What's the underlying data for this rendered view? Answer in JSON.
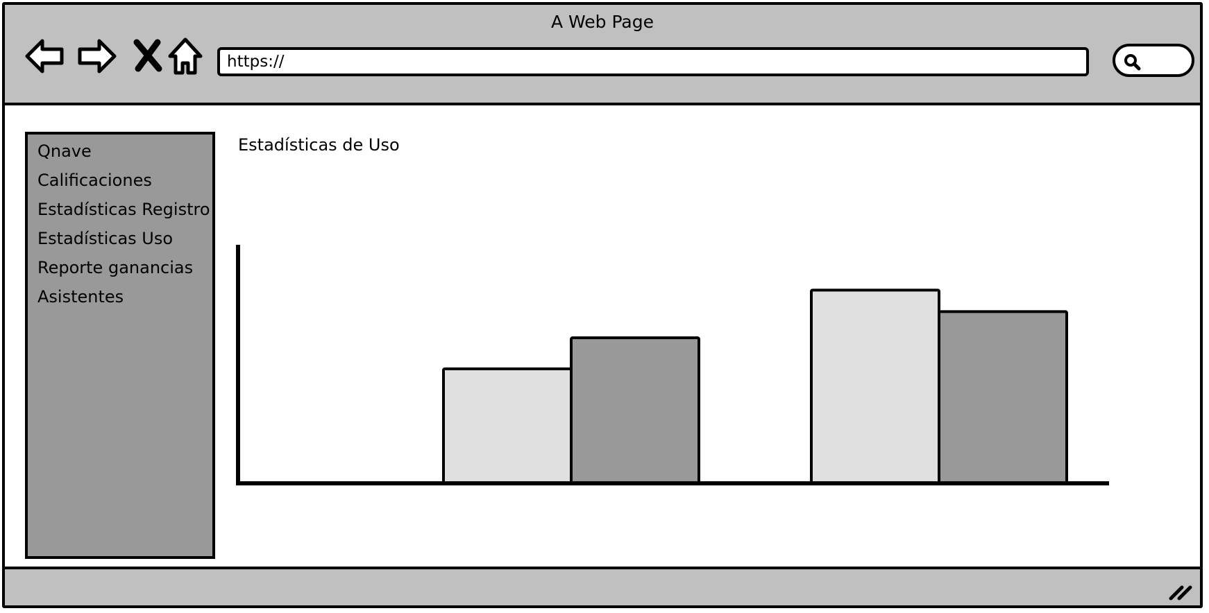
{
  "window": {
    "title": "A Web Page"
  },
  "toolbar": {
    "icons": [
      "back-arrow-icon",
      "forward-arrow-icon",
      "close-x-icon",
      "home-icon"
    ],
    "url": "https://",
    "search_icon": "search-icon"
  },
  "sidebar": {
    "items": [
      {
        "label": "Qnave"
      },
      {
        "label": "Calificaciones"
      },
      {
        "label": "Estadísticas Registro"
      },
      {
        "label": "Estadísticas Uso"
      },
      {
        "label": "Reporte ganancias"
      },
      {
        "label": "Asistentes"
      }
    ]
  },
  "main": {
    "heading": "Estadísticas de Uso"
  },
  "colors": {
    "chrome": "#c0c0c0",
    "sidebar": "#999999",
    "bar_light": "#e0e0e0",
    "bar_dark": "#999999",
    "outline": "#000000"
  },
  "chart_data": {
    "type": "bar",
    "title": "",
    "xlabel": "",
    "ylabel": "",
    "categories": [
      "",
      ""
    ],
    "series": [
      {
        "values": [
          48,
          81
        ],
        "color": "#e0e0e0"
      },
      {
        "values": [
          61,
          72
        ],
        "color": "#999999"
      }
    ],
    "ylim": [
      0,
      100
    ],
    "grid": false,
    "legend": "none"
  }
}
